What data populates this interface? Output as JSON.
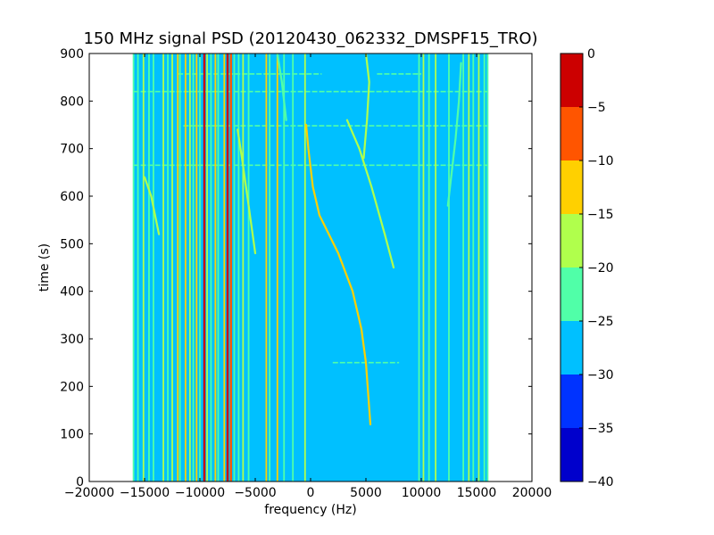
{
  "chart_data": {
    "type": "heatmap",
    "title": "150 MHz signal PSD (20120430_062332_DMSPF15_TRO)",
    "xlabel": "frequency (Hz)",
    "ylabel": "time (s)",
    "xlim": [
      -20000,
      20000
    ],
    "ylim": [
      0,
      900
    ],
    "x_ticks": [
      -20000,
      -15000,
      -10000,
      -5000,
      0,
      5000,
      10000,
      15000,
      20000
    ],
    "y_ticks": [
      0,
      100,
      200,
      300,
      400,
      500,
      600,
      700,
      800,
      900
    ],
    "data_extent_x": [
      -16000,
      16000
    ],
    "grid": false,
    "background_level": -28,
    "colorbar": {
      "levels": [
        -40,
        -35,
        -30,
        -25,
        -20,
        -15,
        -10,
        -5,
        0
      ],
      "tick_labels": [
        "-40",
        "-35",
        "-30",
        "-25",
        "-20",
        "-15",
        "-10",
        "-5",
        "0"
      ],
      "colors": [
        "#0000cc",
        "#0033ff",
        "#00c0ff",
        "#50ffa8",
        "#b0ff4c",
        "#ffd000",
        "#ff5500",
        "#cc0000"
      ]
    },
    "vertical_lines": [
      {
        "x": -16000,
        "level": -22
      },
      {
        "x": -15600,
        "level": -22
      },
      {
        "x": -15100,
        "level": -20
      },
      {
        "x": -14600,
        "level": -22
      },
      {
        "x": -14200,
        "level": -22
      },
      {
        "x": -13300,
        "level": -20
      },
      {
        "x": -12900,
        "level": -22
      },
      {
        "x": -12500,
        "level": -18
      },
      {
        "x": -12000,
        "level": -12
      },
      {
        "x": -11800,
        "level": -22
      },
      {
        "x": -11300,
        "level": -12
      },
      {
        "x": -10900,
        "level": -18
      },
      {
        "x": -10600,
        "level": -22
      },
      {
        "x": -10300,
        "level": -14
      },
      {
        "x": -10000,
        "level": -22
      },
      {
        "x": -9600,
        "level": -2
      },
      {
        "x": -9350,
        "level": -18
      },
      {
        "x": -9000,
        "level": -22
      },
      {
        "x": -8600,
        "level": -14
      },
      {
        "x": -8350,
        "level": -22
      },
      {
        "x": -7800,
        "level": -12
      },
      {
        "x": -7500,
        "level": -2
      },
      {
        "x": -7200,
        "level": -8
      },
      {
        "x": -6900,
        "level": -22
      },
      {
        "x": -6500,
        "level": -22
      },
      {
        "x": -6100,
        "level": -20
      },
      {
        "x": -5600,
        "level": -22
      },
      {
        "x": -4000,
        "level": -14
      },
      {
        "x": -3700,
        "level": -22
      },
      {
        "x": -3000,
        "level": -12
      },
      {
        "x": -2400,
        "level": -22
      },
      {
        "x": -1600,
        "level": -22
      },
      {
        "x": -500,
        "level": -18
      },
      {
        "x": 9800,
        "level": -22
      },
      {
        "x": 10200,
        "level": -20
      },
      {
        "x": 10700,
        "level": -22
      },
      {
        "x": 11300,
        "level": -20
      },
      {
        "x": 12500,
        "level": -22
      },
      {
        "x": 13800,
        "level": -22
      },
      {
        "x": 14300,
        "level": -20
      },
      {
        "x": 14700,
        "level": -22
      },
      {
        "x": 15200,
        "level": -20
      },
      {
        "x": 15700,
        "level": -22
      },
      {
        "x": 16000,
        "level": -22
      }
    ],
    "traces": [
      {
        "level": -14,
        "points": [
          [
            5400,
            120
          ],
          [
            5000,
            250
          ],
          [
            4600,
            320
          ],
          [
            3800,
            400
          ],
          [
            2500,
            480
          ],
          [
            800,
            560
          ],
          [
            200,
            620
          ],
          [
            -200,
            700
          ],
          [
            -400,
            750
          ]
        ]
      },
      {
        "level": -20,
        "points": [
          [
            7500,
            450
          ],
          [
            6700,
            520
          ],
          [
            5500,
            620
          ],
          [
            4400,
            700
          ],
          [
            3300,
            760
          ]
        ]
      },
      {
        "level": -20,
        "points": [
          [
            -5000,
            480
          ],
          [
            -5600,
            580
          ],
          [
            -6200,
            680
          ],
          [
            -6600,
            740
          ]
        ]
      },
      {
        "level": -20,
        "points": [
          [
            -13700,
            520
          ],
          [
            -14400,
            600
          ],
          [
            -15000,
            640
          ]
        ]
      },
      {
        "level": -20,
        "points": [
          [
            4800,
            680
          ],
          [
            5100,
            760
          ],
          [
            5300,
            840
          ],
          [
            5000,
            900
          ]
        ]
      },
      {
        "level": -22,
        "points": [
          [
            12400,
            580
          ],
          [
            13100,
            720
          ],
          [
            13400,
            800
          ],
          [
            13600,
            880
          ]
        ]
      },
      {
        "level": -22,
        "points": [
          [
            -2200,
            760
          ],
          [
            -2600,
            840
          ],
          [
            -3000,
            900
          ]
        ]
      }
    ],
    "horizontal_lines": [
      {
        "y": 250,
        "x": [
          2000,
          8000
        ],
        "level": -22
      },
      {
        "y": 665,
        "x": [
          -16000,
          16000
        ],
        "level": -22
      },
      {
        "y": 748,
        "x": [
          -11500,
          16000
        ],
        "level": -22
      },
      {
        "y": 820,
        "x": [
          -16000,
          16000
        ],
        "level": -22
      },
      {
        "y": 857,
        "x": [
          -12000,
          1000
        ],
        "level": -22
      },
      {
        "y": 857,
        "x": [
          6000,
          10000
        ],
        "level": -22
      }
    ]
  }
}
